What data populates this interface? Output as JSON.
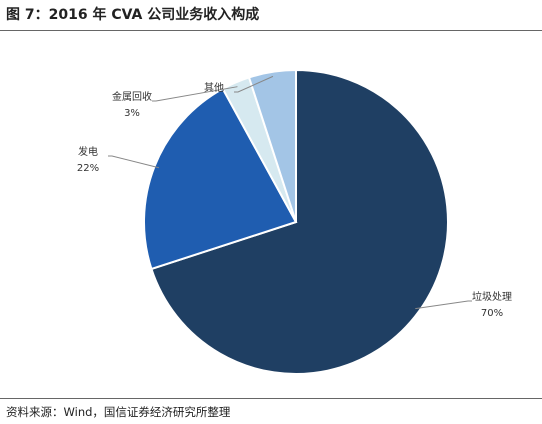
{
  "chart_data": {
    "type": "pie",
    "title": "图 7：2016 年 CVA 公司业务收入构成",
    "source": "资料来源：Wind，国信证券经济研究所整理",
    "categories": [
      "垃圾处理",
      "发电",
      "金属回收",
      "其他"
    ],
    "values": [
      70,
      22,
      3,
      5
    ],
    "value_labels": [
      "70%",
      "22%",
      "3%",
      null
    ],
    "colors": [
      "#1f3f63",
      "#1f5db0",
      "#d6e9f0",
      "#a3c5e6"
    ]
  }
}
